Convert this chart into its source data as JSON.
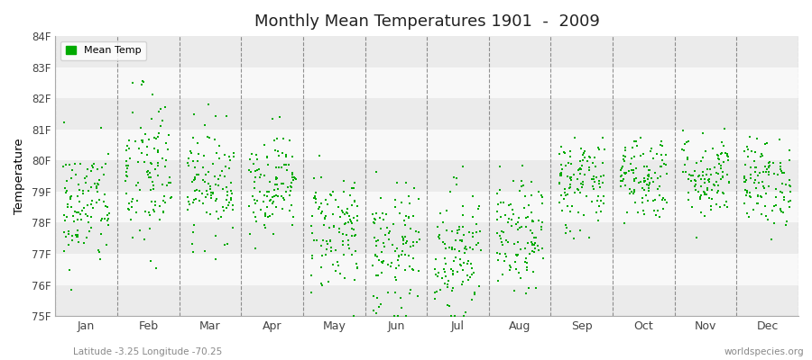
{
  "title": "Monthly Mean Temperatures 1901  -  2009",
  "ylabel": "Temperature",
  "xlabel_bottom_left": "Latitude -3.25 Longitude -70.25",
  "xlabel_bottom_right": "worldspecies.org",
  "legend_label": "Mean Temp",
  "dot_color": "#00aa00",
  "background_color": "#ffffff",
  "plot_bg_light": "#f0f0f0",
  "plot_bg_dark": "#e0e0e0",
  "ylim": [
    75,
    84
  ],
  "ytick_labels": [
    "75F",
    "76F",
    "77F",
    "78F",
    "79F",
    "80F",
    "81F",
    "82F",
    "83F",
    "84F"
  ],
  "ytick_values": [
    75,
    76,
    77,
    78,
    79,
    80,
    81,
    82,
    83,
    84
  ],
  "months": [
    "Jan",
    "Feb",
    "Mar",
    "Apr",
    "May",
    "Jun",
    "Jul",
    "Aug",
    "Sep",
    "Oct",
    "Nov",
    "Dec"
  ],
  "n_years": 109,
  "seed": 42,
  "month_means": [
    78.5,
    79.5,
    79.3,
    79.3,
    77.8,
    77.0,
    77.1,
    77.5,
    79.3,
    79.5,
    79.5,
    79.3
  ],
  "month_stds": [
    1.0,
    1.4,
    0.9,
    0.8,
    1.0,
    1.1,
    1.1,
    0.9,
    0.8,
    0.7,
    0.7,
    0.7
  ]
}
